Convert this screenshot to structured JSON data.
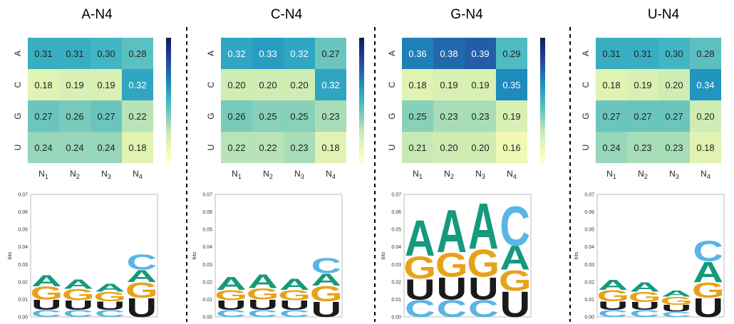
{
  "figure": {
    "rows": [
      "A",
      "C",
      "G",
      "U"
    ],
    "cols": [
      "N1",
      "N2",
      "N3",
      "N4"
    ],
    "colors": {
      "A": "#16997c",
      "C": "#5ab4e5",
      "G": "#e8a21a",
      "U": "#1a1a1a",
      "separator": "#000000",
      "colormap": [
        "#ffffd9",
        "#edf8b1",
        "#c7e9b4",
        "#7fcdbb",
        "#41b6c4",
        "#1d91c0",
        "#225ea8",
        "#253494",
        "#081d58"
      ]
    }
  },
  "chart_data": [
    {
      "type": "heatmap",
      "title": "A-N4",
      "x_tick_labels": [
        "N1",
        "N2",
        "N3",
        "N4"
      ],
      "y_tick_labels": [
        "A",
        "C",
        "G",
        "U"
      ],
      "values": [
        [
          0.31,
          0.31,
          0.3,
          0.28
        ],
        [
          0.18,
          0.19,
          0.19,
          0.32
        ],
        [
          0.27,
          0.26,
          0.27,
          0.22
        ],
        [
          0.24,
          0.24,
          0.24,
          0.18
        ]
      ],
      "colorbar": true,
      "vmin": 0.12,
      "vmax": 0.48
    },
    {
      "type": "heatmap",
      "title": "C-N4",
      "x_tick_labels": [
        "N1",
        "N2",
        "N3",
        "N4"
      ],
      "y_tick_labels": [
        "A",
        "C",
        "G",
        "U"
      ],
      "values": [
        [
          0.32,
          0.33,
          0.32,
          0.27
        ],
        [
          0.2,
          0.2,
          0.2,
          0.32
        ],
        [
          0.26,
          0.25,
          0.25,
          0.23
        ],
        [
          0.22,
          0.22,
          0.23,
          0.18
        ]
      ],
      "colorbar": true,
      "vmin": 0.12,
      "vmax": 0.48
    },
    {
      "type": "heatmap",
      "title": "G-N4",
      "x_tick_labels": [
        "N1",
        "N2",
        "N3",
        "N4"
      ],
      "y_tick_labels": [
        "A",
        "C",
        "G",
        "U"
      ],
      "values": [
        [
          0.36,
          0.38,
          0.39,
          0.29
        ],
        [
          0.18,
          0.19,
          0.19,
          0.35
        ],
        [
          0.25,
          0.23,
          0.23,
          0.19
        ],
        [
          0.21,
          0.2,
          0.2,
          0.16
        ]
      ],
      "colorbar": true,
      "vmin": 0.12,
      "vmax": 0.48
    },
    {
      "type": "heatmap",
      "title": "U-N4",
      "x_tick_labels": [
        "N1",
        "N2",
        "N3",
        "N4"
      ],
      "y_tick_labels": [
        "A",
        "C",
        "G",
        "U"
      ],
      "values": [
        [
          0.31,
          0.31,
          0.3,
          0.28
        ],
        [
          0.18,
          0.19,
          0.2,
          0.34
        ],
        [
          0.27,
          0.27,
          0.27,
          0.2
        ],
        [
          0.24,
          0.23,
          0.23,
          0.18
        ]
      ],
      "colorbar": true,
      "vmin": 0.12,
      "vmax": 0.48
    },
    {
      "type": "bar",
      "subtype": "sequence-logo",
      "ylabel": "bits",
      "ylim": [
        0,
        0.07
      ],
      "y_ticks": [
        "0.00",
        "0.01",
        "0.02",
        "0.03",
        "0.04",
        "0.05",
        "0.06",
        "0.07"
      ],
      "positions": [
        [
          {
            "letter": "C",
            "bits": 0.004
          },
          {
            "letter": "U",
            "bits": 0.006
          },
          {
            "letter": "G",
            "bits": 0.0075
          },
          {
            "letter": "A",
            "bits": 0.0065
          }
        ],
        [
          {
            "letter": "C",
            "bits": 0.004
          },
          {
            "letter": "U",
            "bits": 0.0055
          },
          {
            "letter": "G",
            "bits": 0.0065
          },
          {
            "letter": "A",
            "bits": 0.0055
          }
        ],
        [
          {
            "letter": "C",
            "bits": 0.004
          },
          {
            "letter": "U",
            "bits": 0.005
          },
          {
            "letter": "G",
            "bits": 0.0055
          },
          {
            "letter": "A",
            "bits": 0.0045
          }
        ],
        [
          {
            "letter": "U",
            "bits": 0.011
          },
          {
            "letter": "G",
            "bits": 0.009
          },
          {
            "letter": "A",
            "bits": 0.007
          },
          {
            "letter": "C",
            "bits": 0.009
          }
        ]
      ]
    },
    {
      "type": "bar",
      "subtype": "sequence-logo",
      "ylabel": "bits",
      "ylim": [
        0,
        0.07
      ],
      "y_ticks": [
        "0.00",
        "0.01",
        "0.02",
        "0.03",
        "0.04",
        "0.05",
        "0.06",
        "0.07"
      ],
      "positions": [
        [
          {
            "letter": "C",
            "bits": 0.004
          },
          {
            "letter": "U",
            "bits": 0.0055
          },
          {
            "letter": "G",
            "bits": 0.006
          },
          {
            "letter": "A",
            "bits": 0.0075
          }
        ],
        [
          {
            "letter": "C",
            "bits": 0.004
          },
          {
            "letter": "U",
            "bits": 0.006
          },
          {
            "letter": "G",
            "bits": 0.0065
          },
          {
            "letter": "A",
            "bits": 0.008
          }
        ],
        [
          {
            "letter": "C",
            "bits": 0.004
          },
          {
            "letter": "U",
            "bits": 0.0055
          },
          {
            "letter": "G",
            "bits": 0.006
          },
          {
            "letter": "A",
            "bits": 0.0065
          }
        ],
        [
          {
            "letter": "U",
            "bits": 0.009
          },
          {
            "letter": "G",
            "bits": 0.009
          },
          {
            "letter": "A",
            "bits": 0.007
          },
          {
            "letter": "C",
            "bits": 0.009
          }
        ]
      ]
    },
    {
      "type": "bar",
      "subtype": "sequence-logo",
      "ylabel": "bits",
      "ylim": [
        0,
        0.07
      ],
      "y_ticks": [
        "0.00",
        "0.01",
        "0.02",
        "0.03",
        "0.04",
        "0.05",
        "0.06",
        "0.07"
      ],
      "positions": [
        [
          {
            "letter": "C",
            "bits": 0.01
          },
          {
            "letter": "U",
            "bits": 0.012
          },
          {
            "letter": "G",
            "bits": 0.013
          },
          {
            "letter": "A",
            "bits": 0.021
          }
        ],
        [
          {
            "letter": "C",
            "bits": 0.01
          },
          {
            "letter": "U",
            "bits": 0.013
          },
          {
            "letter": "G",
            "bits": 0.014
          },
          {
            "letter": "A",
            "bits": 0.025
          }
        ],
        [
          {
            "letter": "C",
            "bits": 0.01
          },
          {
            "letter": "U",
            "bits": 0.013
          },
          {
            "letter": "G",
            "bits": 0.016
          },
          {
            "letter": "A",
            "bits": 0.027
          }
        ],
        [
          {
            "letter": "U",
            "bits": 0.015
          },
          {
            "letter": "G",
            "bits": 0.012
          },
          {
            "letter": "A",
            "bits": 0.014
          },
          {
            "letter": "C",
            "bits": 0.023
          }
        ]
      ]
    },
    {
      "type": "bar",
      "subtype": "sequence-logo",
      "ylabel": "bits",
      "ylim": [
        0,
        0.07
      ],
      "y_ticks": [
        "0.00",
        "0.01",
        "0.02",
        "0.03",
        "0.04",
        "0.05",
        "0.06",
        "0.07"
      ],
      "positions": [
        [
          {
            "letter": "C",
            "bits": 0.004
          },
          {
            "letter": "U",
            "bits": 0.005
          },
          {
            "letter": "G",
            "bits": 0.0065
          },
          {
            "letter": "A",
            "bits": 0.006
          }
        ],
        [
          {
            "letter": "C",
            "bits": 0.004
          },
          {
            "letter": "U",
            "bits": 0.0045
          },
          {
            "letter": "G",
            "bits": 0.006
          },
          {
            "letter": "A",
            "bits": 0.0055
          }
        ],
        [
          {
            "letter": "C",
            "bits": 0.003
          },
          {
            "letter": "U",
            "bits": 0.004
          },
          {
            "letter": "G",
            "bits": 0.0045
          },
          {
            "letter": "A",
            "bits": 0.0035
          }
        ],
        [
          {
            "letter": "U",
            "bits": 0.011
          },
          {
            "letter": "G",
            "bits": 0.009
          },
          {
            "letter": "A",
            "bits": 0.012
          },
          {
            "letter": "C",
            "bits": 0.012
          }
        ]
      ]
    }
  ]
}
